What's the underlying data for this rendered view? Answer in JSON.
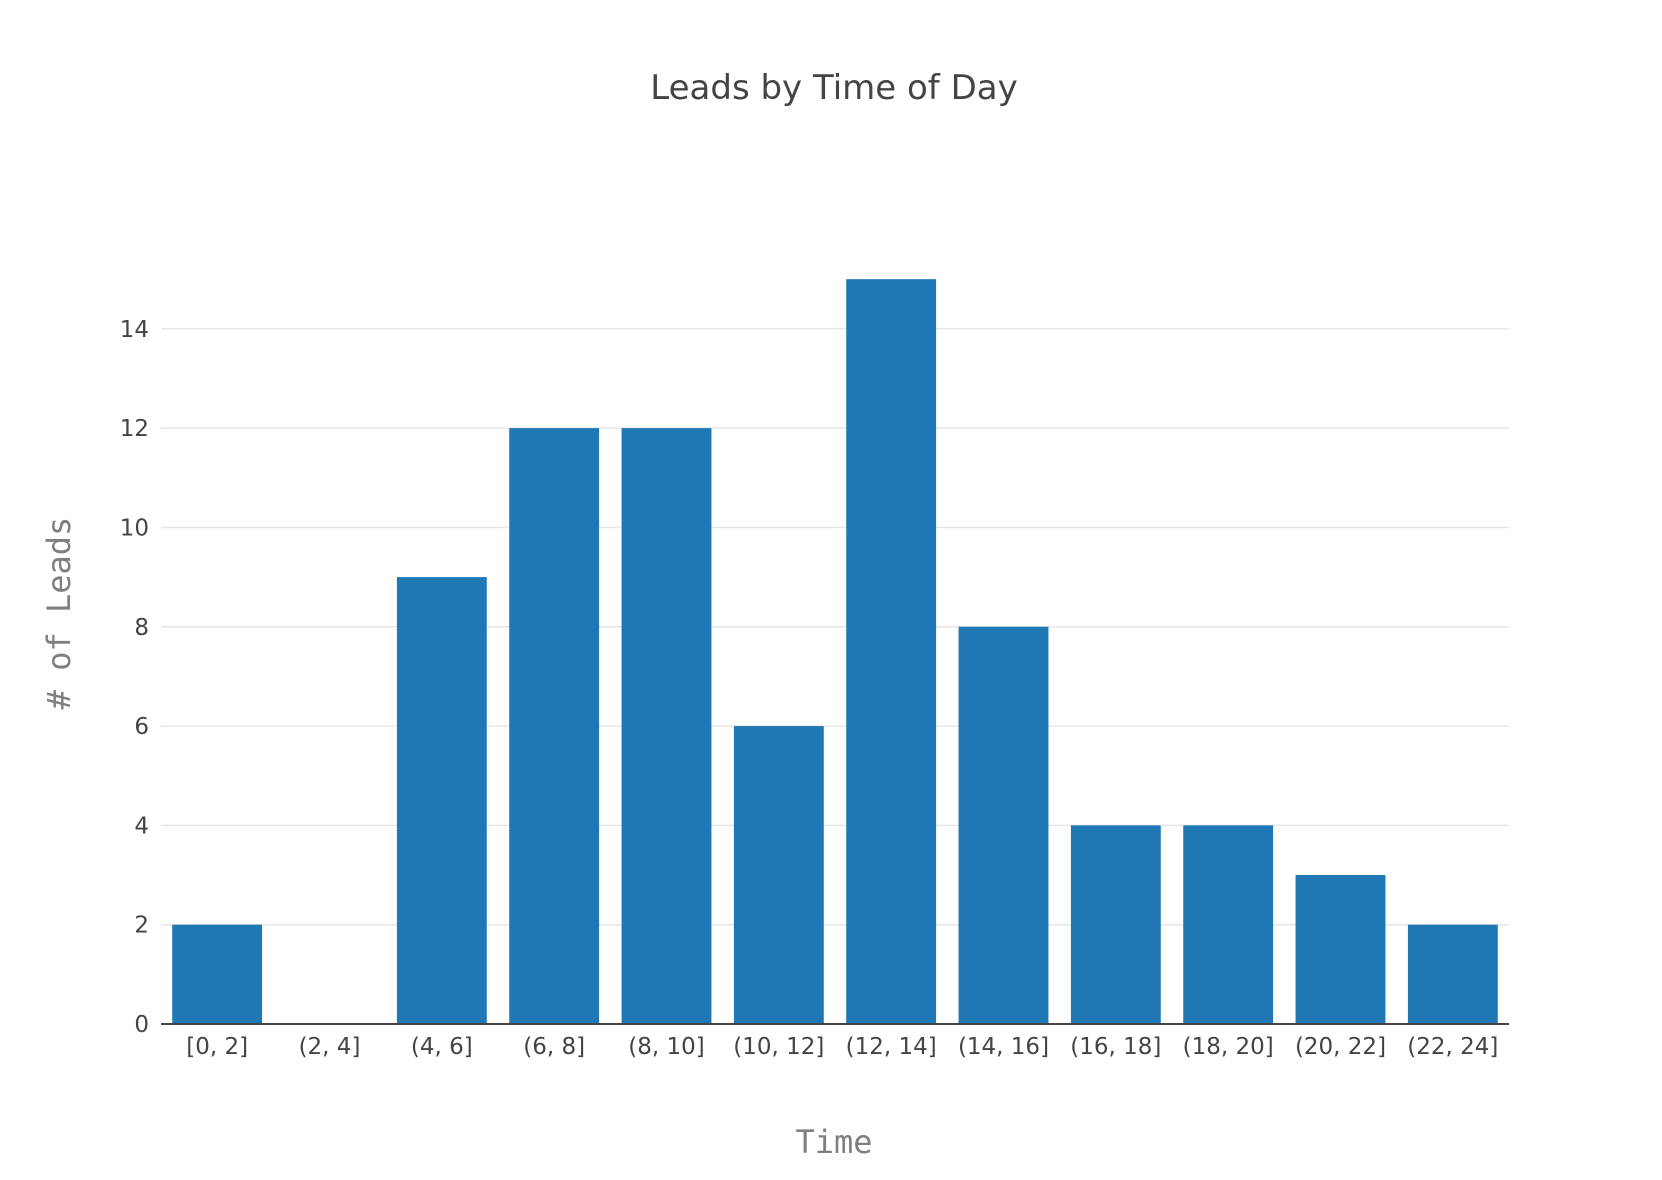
{
  "chart_data": {
    "type": "bar",
    "title": "Leads by Time of Day",
    "xlabel": "Time",
    "ylabel": "# of Leads",
    "categories": [
      "[0, 2]",
      "(2, 4]",
      "(4, 6]",
      "(6, 8]",
      "(8, 10]",
      "(10, 12]",
      "(12, 14]",
      "(14, 16]",
      "(16, 18]",
      "(18, 20]",
      "(20, 22]",
      "(22, 24]"
    ],
    "values": [
      2,
      0,
      9,
      12,
      12,
      6,
      15,
      8,
      4,
      4,
      3,
      2
    ],
    "ylim": [
      0,
      15.789
    ],
    "yticks": [
      0,
      2,
      4,
      6,
      8,
      10,
      12,
      14
    ],
    "grid": true,
    "legend": "none",
    "colors": {
      "bar": "#1f77b4",
      "grid": "#e6e6e6",
      "axis": "#444444",
      "axis_title": "#7f7f7f"
    }
  }
}
